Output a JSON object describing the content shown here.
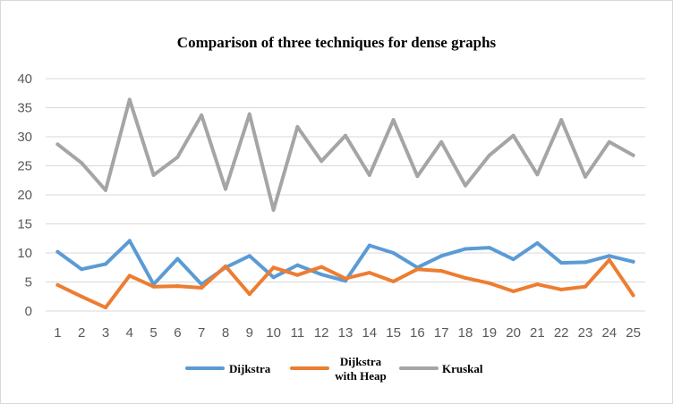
{
  "chart_data": {
    "type": "line",
    "title": "Comparison of three techniques for dense graphs",
    "xlabel": "",
    "ylabel": "",
    "x": [
      1,
      2,
      3,
      4,
      5,
      6,
      7,
      8,
      9,
      10,
      11,
      12,
      13,
      14,
      15,
      16,
      17,
      18,
      19,
      20,
      21,
      22,
      23,
      24,
      25
    ],
    "ylim": [
      0,
      40
    ],
    "yticks": [
      0,
      5,
      10,
      15,
      20,
      25,
      30,
      35,
      40
    ],
    "grid": true,
    "legend_position": "bottom",
    "series": [
      {
        "name": "Dijkstra",
        "color": "#5b9bd5",
        "values": [
          10.2,
          7.2,
          8.1,
          12.1,
          4.6,
          9.0,
          4.6,
          7.5,
          9.5,
          5.8,
          7.9,
          6.3,
          5.2,
          11.3,
          10.0,
          7.5,
          9.5,
          10.7,
          10.9,
          8.9,
          11.7,
          8.3,
          8.4,
          9.5,
          8.5
        ]
      },
      {
        "name": "Dijkstra\nwith Heap",
        "color": "#ed7d31",
        "values": [
          4.5,
          2.5,
          0.6,
          6.1,
          4.2,
          4.3,
          4.0,
          7.7,
          2.9,
          7.5,
          6.2,
          7.6,
          5.6,
          6.6,
          5.1,
          7.2,
          6.9,
          5.7,
          4.8,
          3.4,
          4.6,
          3.7,
          4.2,
          8.8,
          2.7
        ]
      },
      {
        "name": "Kruskal",
        "color": "#a5a5a5",
        "values": [
          28.7,
          25.5,
          20.8,
          36.4,
          23.4,
          26.5,
          33.7,
          21.0,
          33.9,
          17.4,
          31.7,
          25.8,
          30.2,
          23.4,
          32.9,
          23.2,
          29.1,
          21.6,
          26.8,
          30.2,
          23.5,
          32.9,
          23.1,
          29.1,
          26.8
        ]
      }
    ]
  }
}
